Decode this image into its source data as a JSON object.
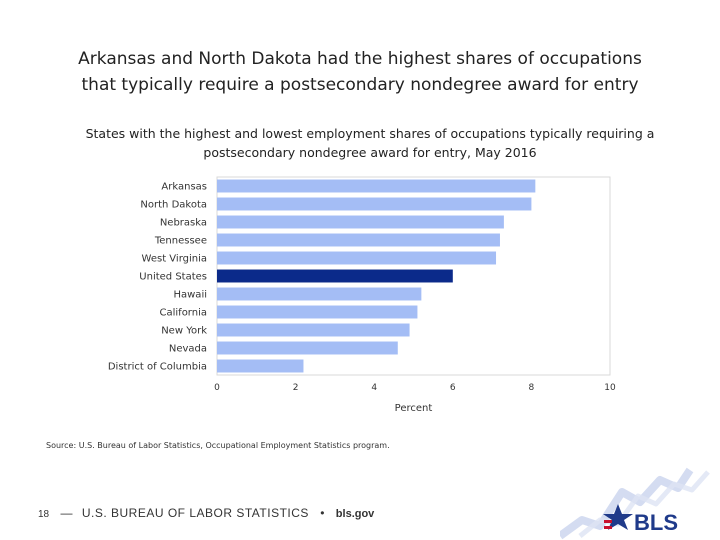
{
  "title_line1": "Arkansas and North Dakota had the highest shares of occupations",
  "title_line2": "that typically require a postsecondary nondegree award for entry",
  "chart_data": {
    "type": "bar",
    "orientation": "horizontal",
    "title_line1": "States with the highest and lowest employment shares of occupations typically requiring a",
    "title_line2": "postsecondary nondegree award for entry, May 2016",
    "categories": [
      "Arkansas",
      "North Dakota",
      "Nebraska",
      "Tennessee",
      "West Virginia",
      "United States",
      "Hawaii",
      "California",
      "New York",
      "Nevada",
      "District of Columbia"
    ],
    "values": [
      8.1,
      8.0,
      7.3,
      7.2,
      7.1,
      6.0,
      5.2,
      5.1,
      4.9,
      4.6,
      2.2
    ],
    "highlight_category": "United States",
    "bar_color": "#a4bdf5",
    "highlight_color": "#0b2a8a",
    "xlim": [
      0,
      10
    ],
    "xticks": [
      "0",
      "2",
      "4",
      "6",
      "8",
      "10"
    ],
    "xlabel": "Percent",
    "ylabel": "",
    "grid": false
  },
  "source": "Source: U.S. Bureau of Labor Statistics, Occupational Employment Statistics program.",
  "footer": {
    "page_number": "18",
    "dash": "—",
    "agency": "U.S. BUREAU OF LABOR STATISTICS",
    "separator": "•",
    "website": "bls.gov"
  },
  "logo": {
    "text": "BLS",
    "icon": "bls-logo-icon",
    "colors": [
      "#1f3a8a",
      "#c8102e"
    ]
  }
}
